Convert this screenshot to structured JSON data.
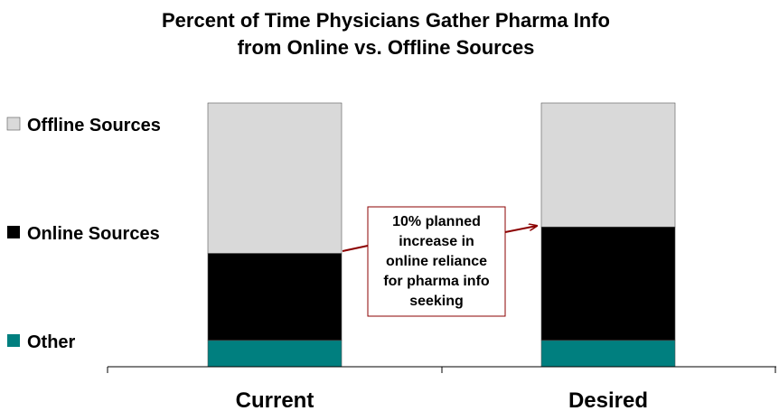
{
  "chart_data": {
    "type": "bar",
    "stacked": true,
    "title": [
      "Percent of Time Physicians Gather Pharma Info",
      "from Online vs. Offline Sources"
    ],
    "categories": [
      "Current",
      "Desired"
    ],
    "series": [
      {
        "name": "Other",
        "color": "#007f7f",
        "values": [
          10,
          10
        ]
      },
      {
        "name": "Online Sources",
        "color": "#000000",
        "values": [
          33,
          43
        ]
      },
      {
        "name": "Offline Sources",
        "color": "#d9d9d9",
        "values": [
          57,
          47
        ]
      }
    ],
    "ylim": [
      0,
      100
    ],
    "grid": false,
    "legend_position": "left",
    "annotation": {
      "lines": [
        "10% planned",
        "increase in",
        "online reliance",
        "for pharma info",
        "seeking"
      ],
      "color": "#8b0000"
    }
  }
}
